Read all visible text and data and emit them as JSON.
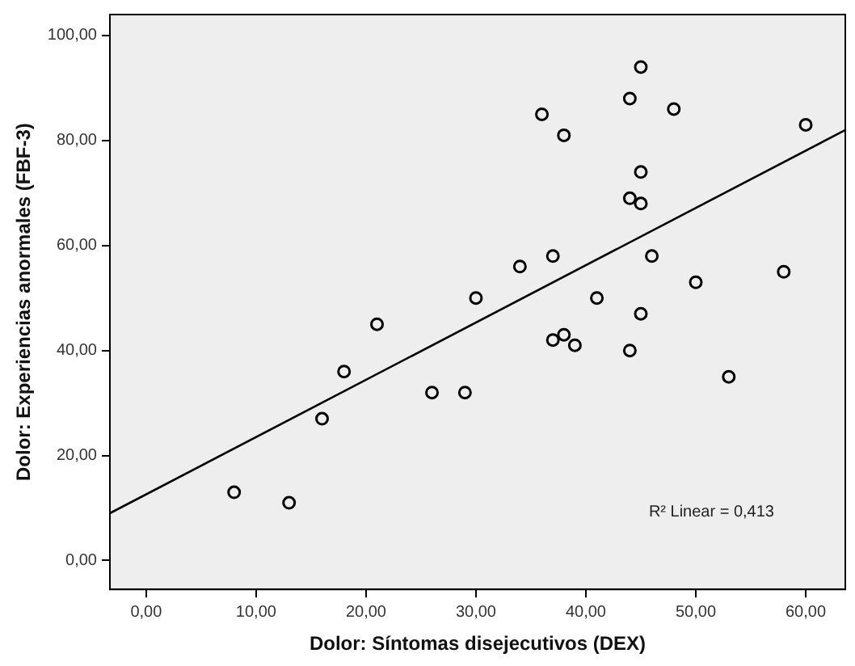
{
  "chart_data": {
    "type": "scatter",
    "xlabel": "Dolor: Síntomas disejecutivos (DEX)",
    "ylabel": "Dolor: Experiencias anormales (FBF-3)",
    "annotations": [
      "R² Linear = 0,413"
    ],
    "grid": false,
    "legend": false,
    "marker": "circle",
    "xlim": [
      -3.3,
      63.6
    ],
    "ylim": [
      -5.5,
      104
    ],
    "xticks": [
      {
        "value": 0,
        "label": "0,00"
      },
      {
        "value": 10,
        "label": "10,00"
      },
      {
        "value": 20,
        "label": "20,00"
      },
      {
        "value": 30,
        "label": "30,00"
      },
      {
        "value": 40,
        "label": "40,00"
      },
      {
        "value": 50,
        "label": "50,00"
      },
      {
        "value": 60,
        "label": "60,00"
      }
    ],
    "yticks": [
      {
        "value": 0,
        "label": "0,00"
      },
      {
        "value": 20,
        "label": "20,00"
      },
      {
        "value": 40,
        "label": "40,00"
      },
      {
        "value": 60,
        "label": "60,00"
      },
      {
        "value": 80,
        "label": "80,00"
      },
      {
        "value": 100,
        "label": "100,00"
      }
    ],
    "series": [
      {
        "color": "#000000",
        "x": [
          8,
          13,
          16,
          18,
          21,
          26,
          29,
          30,
          34,
          36,
          37,
          37,
          38,
          38,
          39,
          41,
          44,
          44,
          44,
          45,
          45,
          45,
          45,
          46,
          48,
          50,
          53,
          58,
          60
        ],
        "values": [
          13,
          11,
          27,
          36,
          45,
          32,
          32,
          50,
          56,
          85,
          58,
          42,
          81,
          43,
          41,
          50,
          88,
          69,
          40,
          94,
          74,
          68,
          47,
          58,
          86,
          53,
          35,
          55,
          83
        ]
      },
      {
        "type": "line",
        "color": "#000000",
        "marker": "none",
        "x": [
          -3.3,
          63.6
        ],
        "values": [
          9,
          82
        ]
      }
    ]
  }
}
